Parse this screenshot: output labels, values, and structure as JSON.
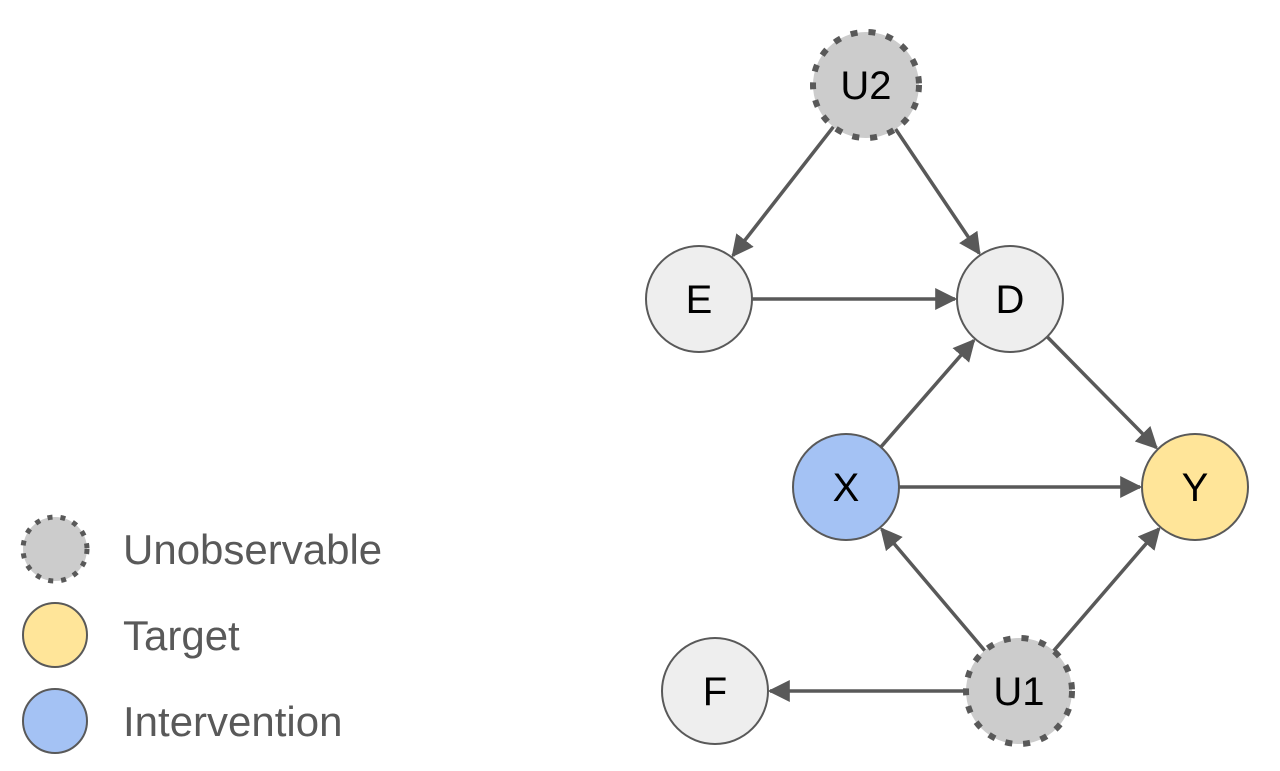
{
  "colors": {
    "unobservable": "#cccccc",
    "target": "#ffe599",
    "intervention": "#a4c2f4",
    "observed": "#eeeeee",
    "edge": "#595959",
    "outline": "#595959"
  },
  "nodes": [
    {
      "id": "U2",
      "label": "U2",
      "kind": "unobservable"
    },
    {
      "id": "E",
      "label": "E",
      "kind": "observed"
    },
    {
      "id": "D",
      "label": "D",
      "kind": "observed"
    },
    {
      "id": "X",
      "label": "X",
      "kind": "intervention"
    },
    {
      "id": "Y",
      "label": "Y",
      "kind": "target"
    },
    {
      "id": "F",
      "label": "F",
      "kind": "observed"
    },
    {
      "id": "U1",
      "label": "U1",
      "kind": "unobservable"
    }
  ],
  "edges": [
    {
      "from": "U2",
      "to": "E"
    },
    {
      "from": "U2",
      "to": "D"
    },
    {
      "from": "E",
      "to": "D"
    },
    {
      "from": "X",
      "to": "D"
    },
    {
      "from": "D",
      "to": "Y"
    },
    {
      "from": "X",
      "to": "Y"
    },
    {
      "from": "U1",
      "to": "X"
    },
    {
      "from": "U1",
      "to": "Y"
    },
    {
      "from": "U1",
      "to": "F"
    }
  ],
  "legend": [
    {
      "label": "Unobservable",
      "kind": "unobservable"
    },
    {
      "label": "Target",
      "kind": "target"
    },
    {
      "label": "Intervention",
      "kind": "intervention"
    }
  ]
}
